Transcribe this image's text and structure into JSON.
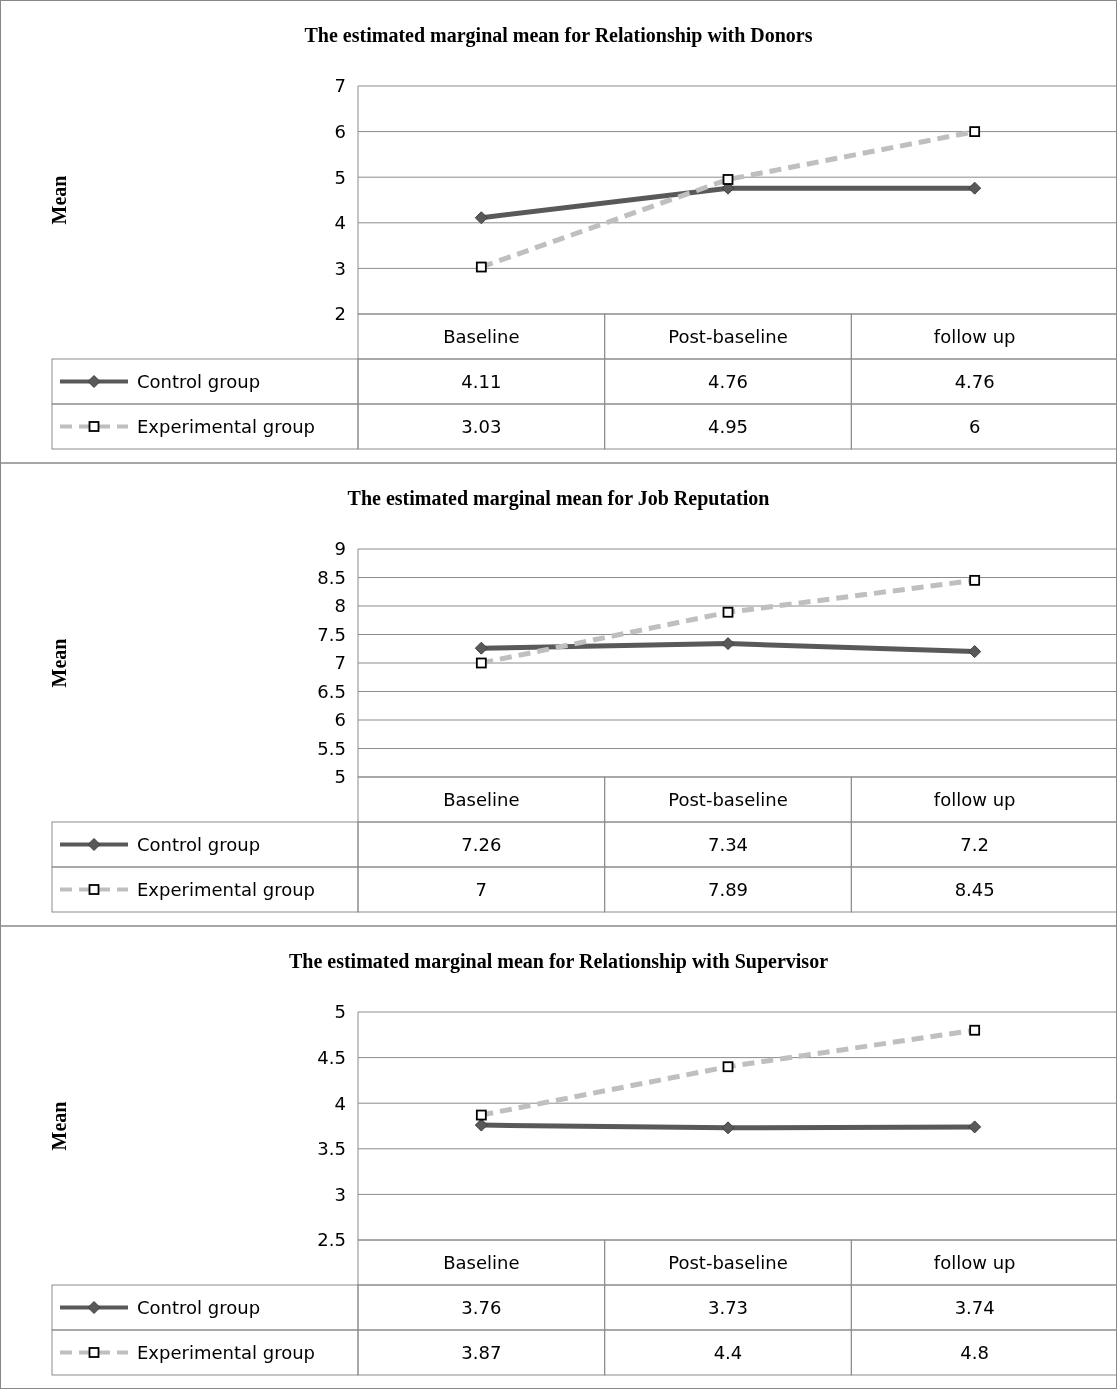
{
  "chart_data": [
    {
      "type": "line",
      "title": "The estimated marginal mean for Relationship with Donors",
      "ylabel": "Mean",
      "categories": [
        "Baseline",
        "Post-baseline",
        "follow up"
      ],
      "series": [
        {
          "name": "Control group",
          "color": "#595959",
          "values": [
            4.11,
            4.76,
            4.76
          ],
          "marker": "diamond",
          "line_style": "solid"
        },
        {
          "name": "Experimental group",
          "color": "#bfbfbf",
          "values": [
            3.03,
            4.95,
            6
          ],
          "marker": "square",
          "line_style": "dashed"
        }
      ],
      "ylim": [
        2,
        7
      ],
      "yticks": [
        2,
        3,
        4,
        5,
        6,
        7
      ],
      "grid": "y",
      "legend": "bottom",
      "data_labels": true
    },
    {
      "type": "line",
      "title": "The estimated marginal mean for Job Reputation",
      "ylabel": "Mean",
      "categories": [
        "Baseline",
        "Post-baseline",
        "follow up"
      ],
      "series": [
        {
          "name": "Control group",
          "color": "#595959",
          "values": [
            7.26,
            7.34,
            7.2
          ],
          "marker": "diamond",
          "line_style": "solid"
        },
        {
          "name": "Experimental group",
          "color": "#bfbfbf",
          "values": [
            7,
            7.89,
            8.45
          ],
          "marker": "square",
          "line_style": "dashed"
        }
      ],
      "ylim": [
        5,
        9
      ],
      "yticks": [
        5,
        5.5,
        6,
        6.5,
        7,
        7.5,
        8,
        8.5,
        9
      ],
      "grid": "y",
      "legend": "bottom",
      "data_labels": true
    },
    {
      "type": "line",
      "title": "The estimated marginal mean for Relationship with Supervisor",
      "ylabel": "Mean",
      "categories": [
        "Baseline",
        "Post-baseline",
        "follow up"
      ],
      "series": [
        {
          "name": "Control group",
          "color": "#595959",
          "values": [
            3.76,
            3.73,
            3.74
          ],
          "marker": "diamond",
          "line_style": "solid"
        },
        {
          "name": "Experimental group",
          "color": "#bfbfbf",
          "values": [
            3.87,
            4.4,
            4.8
          ],
          "marker": "square",
          "line_style": "dashed"
        }
      ],
      "ylim": [
        2.5,
        5
      ],
      "yticks": [
        2.5,
        3,
        3.5,
        4,
        4.5,
        5
      ],
      "grid": "y",
      "legend": "bottom",
      "data_labels": true
    }
  ]
}
